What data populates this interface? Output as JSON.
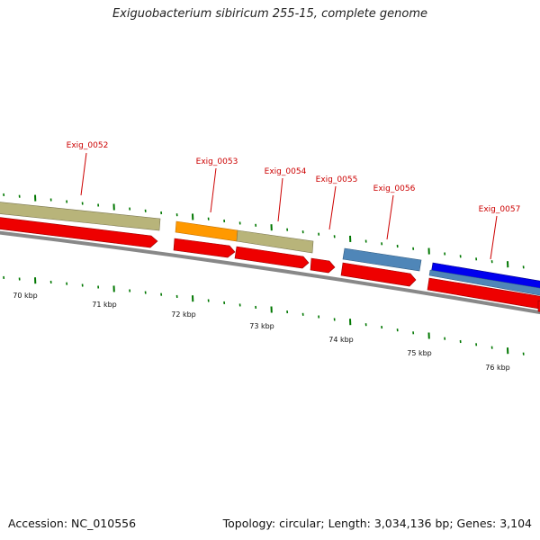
{
  "title": "Exiguobacterium sibiricum 255-15, complete genome",
  "accession": "Accession: NC_010556",
  "summary": "Topology: circular; Length: 3,034,136 bp; Genes: 3,104",
  "colors": {
    "cds_red": "#ee0000",
    "khaki": "#b8b47a",
    "orange": "#ff9900",
    "steelblue": "#4f86b8",
    "blue": "#0000ee",
    "backbone": "#808080",
    "tick_green": "#007700",
    "label_red": "#cc0000"
  },
  "genes": [
    {
      "name": "Exig_0052"
    },
    {
      "name": "Exig_0053"
    },
    {
      "name": "Exig_0054"
    },
    {
      "name": "Exig_0055"
    },
    {
      "name": "Exig_0056"
    },
    {
      "name": "Exig_0057"
    }
  ],
  "scale_labels": [
    "70 kbp",
    "71 kbp",
    "72 kbp",
    "73 kbp",
    "74 kbp",
    "75 kbp",
    "76 kbp"
  ]
}
